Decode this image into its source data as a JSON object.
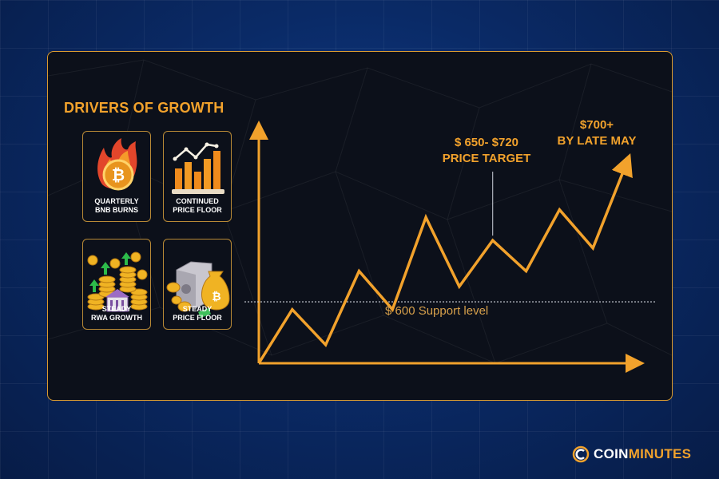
{
  "drivers": {
    "title": "DRIVERS OF GROWTH",
    "cards": [
      {
        "label": "QUARTERLY\nBNB BURNS",
        "icon": "flaming-coin-icon"
      },
      {
        "label": "CONTINUED\nPRICE FLOOR",
        "icon": "bar-chart-icon"
      },
      {
        "label": "STEADY\nRWA GROWTH",
        "icon": "coin-stacks-bank-icon"
      },
      {
        "label": "STEADY\nPRICE FLOOR",
        "icon": "safe-money-bag-icon"
      }
    ]
  },
  "chart_data": {
    "type": "line",
    "title": "",
    "xlabel": "",
    "ylabel": "",
    "points": [
      {
        "x": 0,
        "y": 0
      },
      {
        "x": 1,
        "y": 35
      },
      {
        "x": 2,
        "y": 12
      },
      {
        "x": 3,
        "y": 60
      },
      {
        "x": 4,
        "y": 35
      },
      {
        "x": 5,
        "y": 95
      },
      {
        "x": 6,
        "y": 50
      },
      {
        "x": 7,
        "y": 80
      },
      {
        "x": 8,
        "y": 60
      },
      {
        "x": 9,
        "y": 100
      },
      {
        "x": 10,
        "y": 75
      },
      {
        "x": 11,
        "y": 130
      }
    ],
    "support": {
      "value": 40,
      "label": "$ 600 Support level"
    },
    "annotations": [
      {
        "label_line1": "$ 650- $720",
        "label_line2": "PRICE TARGET",
        "at_point": 7
      },
      {
        "label_line1": "$700+",
        "label_line2": "BY LATE MAY",
        "at_point": 11
      }
    ],
    "colors": {
      "line": "#f2a22c",
      "axis": "#f2a22c",
      "support": "#cfd3dc"
    }
  },
  "brand": {
    "prefix": "COIN",
    "suffix": "MINUTES"
  }
}
